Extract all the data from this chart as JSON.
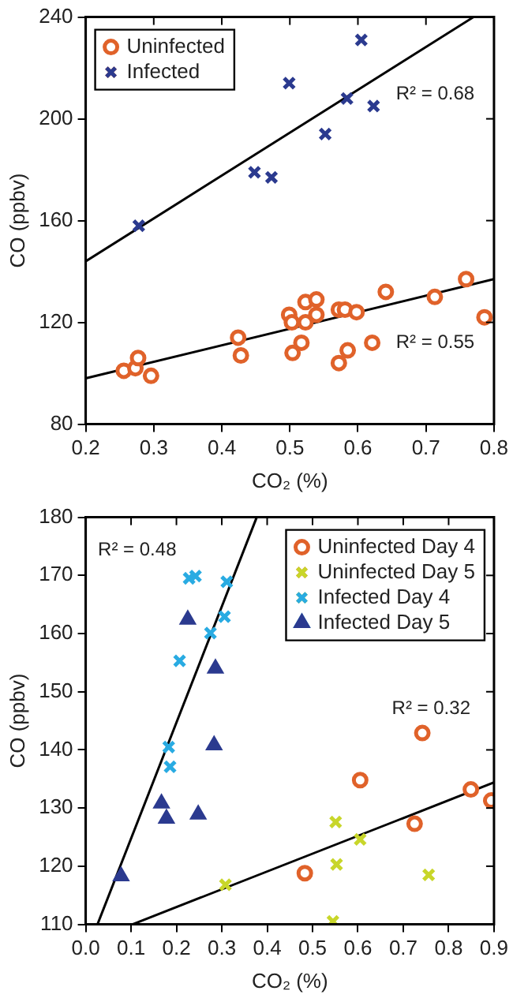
{
  "chart_data": [
    {
      "type": "scatter",
      "xlabel": "CO₂ (%)",
      "ylabel": "CO (ppbv)",
      "xlim": [
        0.2,
        0.8
      ],
      "xticks": [
        0.2,
        0.3,
        0.4,
        0.5,
        0.6,
        0.7,
        0.8
      ],
      "ylim": [
        80,
        240
      ],
      "yticks": [
        80,
        120,
        160,
        200,
        240
      ],
      "legend": "top left",
      "grid": false,
      "annotations": [
        "R² = 0.68",
        "R² = 0.55"
      ],
      "series": [
        {
          "name": "Uninfected",
          "color": "#e0622a",
          "marker": "circle",
          "x": [
            0.256,
            0.273,
            0.277,
            0.296,
            0.424,
            0.428,
            0.499,
            0.503,
            0.504,
            0.517,
            0.523,
            0.523,
            0.539,
            0.539,
            0.572,
            0.581,
            0.572,
            0.585,
            0.598,
            0.621,
            0.641,
            0.713,
            0.759,
            0.786
          ],
          "values": [
            101,
            102,
            106,
            99,
            114,
            107,
            123,
            120,
            108,
            112,
            120,
            128,
            129,
            123,
            125,
            125,
            104,
            109,
            124,
            112,
            132,
            130,
            137,
            122
          ]
        },
        {
          "name": "Infected",
          "color": "#2b3a8f",
          "marker": "cross",
          "x": [
            0.278,
            0.499,
            0.605,
            0.584,
            0.623,
            0.552,
            0.448,
            0.473
          ],
          "values": [
            158,
            214,
            231,
            208,
            205,
            194,
            179,
            177
          ]
        },
        {
          "type": "line",
          "color": "#000000",
          "marker": "none",
          "x": [
            0.2,
            0.77
          ],
          "values": [
            144,
            240
          ]
        },
        {
          "type": "line",
          "color": "#000000",
          "marker": "none",
          "x": [
            0.2,
            0.8
          ],
          "values": [
            98,
            137
          ]
        }
      ]
    },
    {
      "type": "scatter",
      "xlabel": "CO₂ (%)",
      "ylabel": "CO (ppbv)",
      "xlim": [
        0.0,
        0.9
      ],
      "xticks": [
        {
          "value": 0,
          "label": "0.0"
        },
        0.1,
        0.2,
        0.3,
        0.4,
        0.5,
        0.6,
        0.7,
        0.8,
        0.9
      ],
      "ylim": [
        110,
        180
      ],
      "yticks": [
        110,
        120,
        130,
        140,
        150,
        160,
        170,
        180
      ],
      "legend": "top right",
      "grid": false,
      "annotations": [
        "R² = 0.48",
        "R² = 0.32"
      ],
      "series": [
        {
          "name": "Uninfected Day 4",
          "color": "#e0622a",
          "marker": "circle",
          "x": [
            0.742,
            0.605,
            0.849,
            0.894,
            0.725,
            0.483
          ],
          "values": [
            142.9,
            134.8,
            133.2,
            131.3,
            127.3,
            118.8
          ]
        },
        {
          "name": "Uninfected Day 5",
          "color": "#c8d62a",
          "marker": "cross",
          "x": [
            0.551,
            0.605,
            0.553,
            0.756,
            0.308,
            0.545
          ],
          "values": [
            127.6,
            124.6,
            120.3,
            118.5,
            116.8,
            110.5
          ]
        },
        {
          "name": "Infected Day 4",
          "color": "#29abe2",
          "marker": "cross",
          "x": [
            0.228,
            0.242,
            0.311,
            0.306,
            0.275,
            0.207,
            0.183,
            0.186
          ],
          "values": [
            169.5,
            169.9,
            168.9,
            162.9,
            160.1,
            155.3,
            140.5,
            137.1
          ]
        },
        {
          "name": "Infected Day 5",
          "color": "#2b3a8f",
          "marker": "triangle",
          "x": [
            0.225,
            0.286,
            0.283,
            0.167,
            0.178,
            0.248,
            0.078
          ],
          "values": [
            162.4,
            154,
            140.8,
            130.8,
            128.2,
            128.9,
            118.3
          ]
        },
        {
          "type": "line",
          "color": "#000000",
          "marker": "none",
          "x": [
            0.026,
            0.377
          ],
          "values": [
            110,
            180
          ]
        },
        {
          "type": "line",
          "color": "#000000",
          "marker": "none",
          "x": [
            0.103,
            0.9
          ],
          "values": [
            110,
            134.4
          ]
        }
      ]
    }
  ]
}
